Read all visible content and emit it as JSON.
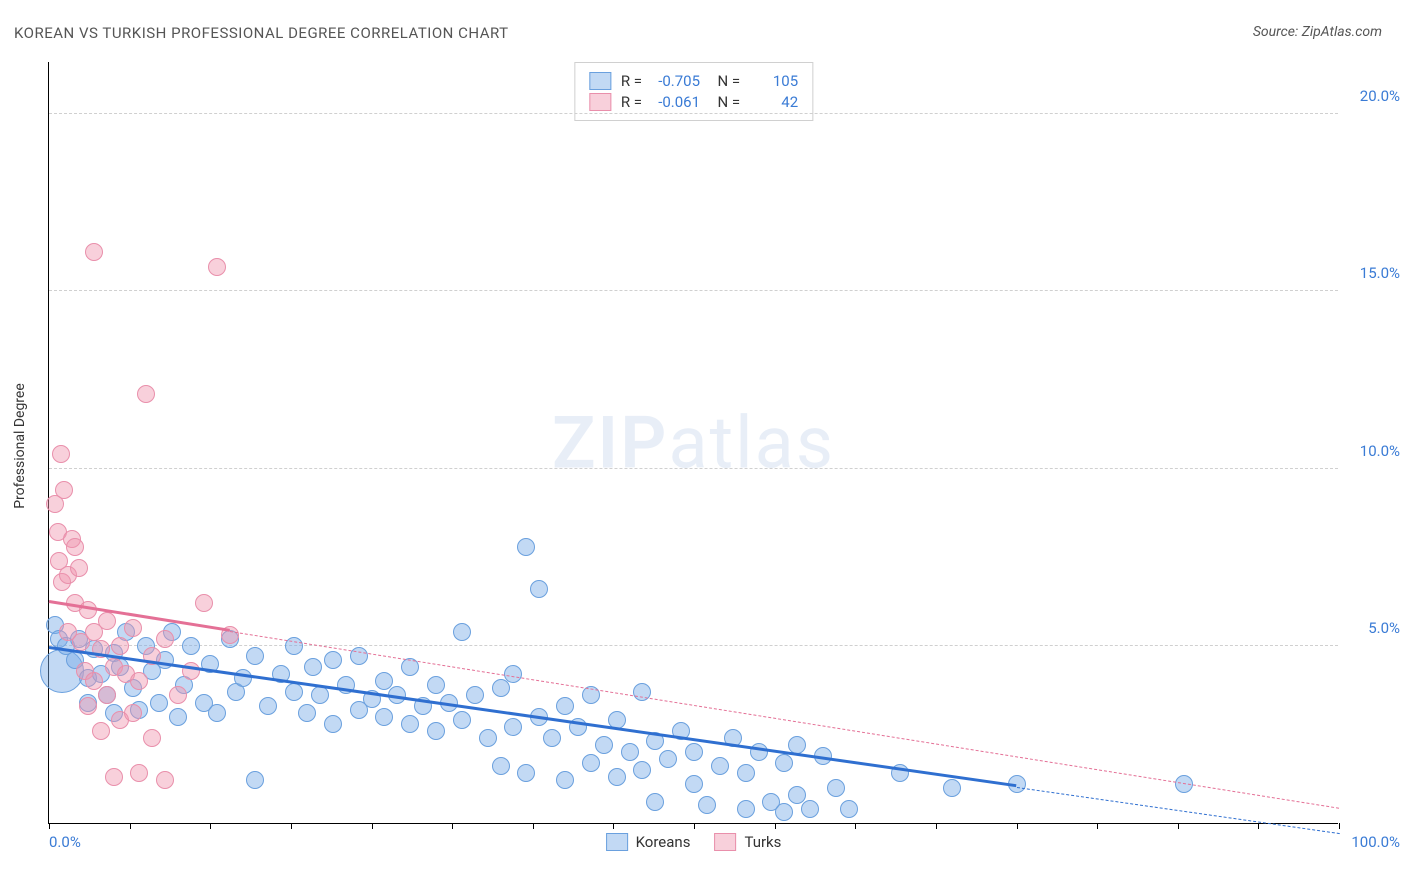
{
  "title": "KOREAN VS TURKISH PROFESSIONAL DEGREE CORRELATION CHART",
  "source": "Source: ZipAtlas.com",
  "ylabel": "Professional Degree",
  "watermark_a": "ZIP",
  "watermark_b": "atlas",
  "chart": {
    "type": "scatter",
    "xlim": [
      0,
      100
    ],
    "ylim": [
      0,
      21.5
    ],
    "y_ticks": [
      5.0,
      10.0,
      15.0,
      20.0
    ],
    "y_tick_labels": [
      "5.0%",
      "10.0%",
      "15.0%",
      "20.0%"
    ],
    "x_tick_positions": [
      0,
      6.25,
      12.5,
      18.75,
      25,
      31.25,
      37.5,
      43.75,
      50,
      56.25,
      62.5,
      68.75,
      75,
      81.25,
      87.5,
      93.75,
      100
    ],
    "x_left_label": "0.0%",
    "x_right_label": "100.0%",
    "background_color": "#ffffff",
    "grid_color": "#d0d0d0",
    "axis_color": "#000000",
    "tick_label_color": "#3a7bd5",
    "series": [
      {
        "name": "Koreans",
        "fill": "rgba(120,170,230,0.45)",
        "stroke": "#6aa0de",
        "R": "-0.705",
        "N": "105",
        "trend": {
          "x1": 0,
          "y1": 4.9,
          "x2": 100,
          "y2": -0.3,
          "solid_until_x": 75,
          "color": "#2f6fd0"
        },
        "points": [
          {
            "x": 0.5,
            "y": 5.6,
            "r": 9
          },
          {
            "x": 0.8,
            "y": 5.2,
            "r": 9
          },
          {
            "x": 1,
            "y": 4.3,
            "r": 22
          },
          {
            "x": 1.3,
            "y": 5.0,
            "r": 9
          },
          {
            "x": 2,
            "y": 4.6,
            "r": 9
          },
          {
            "x": 2.3,
            "y": 5.2,
            "r": 9
          },
          {
            "x": 3,
            "y": 4.1,
            "r": 9
          },
          {
            "x": 3,
            "y": 3.4,
            "r": 9
          },
          {
            "x": 3.5,
            "y": 4.9,
            "r": 9
          },
          {
            "x": 4,
            "y": 4.2,
            "r": 9
          },
          {
            "x": 4.5,
            "y": 3.6,
            "r": 9
          },
          {
            "x": 5,
            "y": 4.8,
            "r": 9
          },
          {
            "x": 5,
            "y": 3.1,
            "r": 9
          },
          {
            "x": 5.5,
            "y": 4.4,
            "r": 9
          },
          {
            "x": 6,
            "y": 5.4,
            "r": 9
          },
          {
            "x": 6.5,
            "y": 3.8,
            "r": 9
          },
          {
            "x": 7,
            "y": 3.2,
            "r": 9
          },
          {
            "x": 7.5,
            "y": 5.0,
            "r": 9
          },
          {
            "x": 8,
            "y": 4.3,
            "r": 9
          },
          {
            "x": 8.5,
            "y": 3.4,
            "r": 9
          },
          {
            "x": 9,
            "y": 4.6,
            "r": 9
          },
          {
            "x": 9.5,
            "y": 5.4,
            "r": 9
          },
          {
            "x": 10,
            "y": 3.0,
            "r": 9
          },
          {
            "x": 10.5,
            "y": 3.9,
            "r": 9
          },
          {
            "x": 11,
            "y": 5.0,
            "r": 9
          },
          {
            "x": 12,
            "y": 3.4,
            "r": 9
          },
          {
            "x": 12.5,
            "y": 4.5,
            "r": 9
          },
          {
            "x": 13,
            "y": 3.1,
            "r": 9
          },
          {
            "x": 14,
            "y": 5.2,
            "r": 9
          },
          {
            "x": 14.5,
            "y": 3.7,
            "r": 9
          },
          {
            "x": 15,
            "y": 4.1,
            "r": 9
          },
          {
            "x": 16,
            "y": 4.7,
            "r": 9
          },
          {
            "x": 16,
            "y": 1.2,
            "r": 9
          },
          {
            "x": 17,
            "y": 3.3,
            "r": 9
          },
          {
            "x": 18,
            "y": 4.2,
            "r": 9
          },
          {
            "x": 19,
            "y": 3.7,
            "r": 9
          },
          {
            "x": 19,
            "y": 5.0,
            "r": 9
          },
          {
            "x": 20,
            "y": 3.1,
            "r": 9
          },
          {
            "x": 20.5,
            "y": 4.4,
            "r": 9
          },
          {
            "x": 21,
            "y": 3.6,
            "r": 9
          },
          {
            "x": 22,
            "y": 2.8,
            "r": 9
          },
          {
            "x": 22,
            "y": 4.6,
            "r": 9
          },
          {
            "x": 23,
            "y": 3.9,
            "r": 9
          },
          {
            "x": 24,
            "y": 3.2,
            "r": 9
          },
          {
            "x": 24,
            "y": 4.7,
            "r": 9
          },
          {
            "x": 25,
            "y": 3.5,
            "r": 9
          },
          {
            "x": 26,
            "y": 4.0,
            "r": 9
          },
          {
            "x": 26,
            "y": 3.0,
            "r": 9
          },
          {
            "x": 27,
            "y": 3.6,
            "r": 9
          },
          {
            "x": 28,
            "y": 2.8,
            "r": 9
          },
          {
            "x": 28,
            "y": 4.4,
            "r": 9
          },
          {
            "x": 29,
            "y": 3.3,
            "r": 9
          },
          {
            "x": 30,
            "y": 3.9,
            "r": 9
          },
          {
            "x": 30,
            "y": 2.6,
            "r": 9
          },
          {
            "x": 31,
            "y": 3.4,
            "r": 9
          },
          {
            "x": 32,
            "y": 5.4,
            "r": 9
          },
          {
            "x": 32,
            "y": 2.9,
            "r": 9
          },
          {
            "x": 33,
            "y": 3.6,
            "r": 9
          },
          {
            "x": 34,
            "y": 2.4,
            "r": 9
          },
          {
            "x": 35,
            "y": 3.8,
            "r": 9
          },
          {
            "x": 35,
            "y": 1.6,
            "r": 9
          },
          {
            "x": 36,
            "y": 2.7,
            "r": 9
          },
          {
            "x": 36,
            "y": 4.2,
            "r": 9
          },
          {
            "x": 37,
            "y": 7.8,
            "r": 9
          },
          {
            "x": 37,
            "y": 1.4,
            "r": 9
          },
          {
            "x": 38,
            "y": 3.0,
            "r": 9
          },
          {
            "x": 38,
            "y": 6.6,
            "r": 9
          },
          {
            "x": 39,
            "y": 2.4,
            "r": 9
          },
          {
            "x": 40,
            "y": 3.3,
            "r": 9
          },
          {
            "x": 40,
            "y": 1.2,
            "r": 9
          },
          {
            "x": 41,
            "y": 2.7,
            "r": 9
          },
          {
            "x": 42,
            "y": 1.7,
            "r": 9
          },
          {
            "x": 42,
            "y": 3.6,
            "r": 9
          },
          {
            "x": 43,
            "y": 2.2,
            "r": 9
          },
          {
            "x": 44,
            "y": 1.3,
            "r": 9
          },
          {
            "x": 44,
            "y": 2.9,
            "r": 9
          },
          {
            "x": 45,
            "y": 2.0,
            "r": 9
          },
          {
            "x": 46,
            "y": 1.5,
            "r": 9
          },
          {
            "x": 46,
            "y": 3.7,
            "r": 9
          },
          {
            "x": 47,
            "y": 2.3,
            "r": 9
          },
          {
            "x": 47,
            "y": 0.6,
            "r": 9
          },
          {
            "x": 48,
            "y": 1.8,
            "r": 9
          },
          {
            "x": 49,
            "y": 2.6,
            "r": 9
          },
          {
            "x": 50,
            "y": 1.1,
            "r": 9
          },
          {
            "x": 50,
            "y": 2.0,
            "r": 9
          },
          {
            "x": 51,
            "y": 0.5,
            "r": 9
          },
          {
            "x": 52,
            "y": 1.6,
            "r": 9
          },
          {
            "x": 53,
            "y": 2.4,
            "r": 9
          },
          {
            "x": 54,
            "y": 0.4,
            "r": 9
          },
          {
            "x": 54,
            "y": 1.4,
            "r": 9
          },
          {
            "x": 55,
            "y": 2.0,
            "r": 9
          },
          {
            "x": 56,
            "y": 0.6,
            "r": 9
          },
          {
            "x": 57,
            "y": 1.7,
            "r": 9
          },
          {
            "x": 57,
            "y": 0.3,
            "r": 9
          },
          {
            "x": 58,
            "y": 2.2,
            "r": 9
          },
          {
            "x": 58,
            "y": 0.8,
            "r": 9
          },
          {
            "x": 59,
            "y": 0.4,
            "r": 9
          },
          {
            "x": 60,
            "y": 1.9,
            "r": 9
          },
          {
            "x": 61,
            "y": 1.0,
            "r": 9
          },
          {
            "x": 62,
            "y": 0.4,
            "r": 9
          },
          {
            "x": 66,
            "y": 1.4,
            "r": 9
          },
          {
            "x": 70,
            "y": 1.0,
            "r": 9
          },
          {
            "x": 75,
            "y": 1.1,
            "r": 9
          },
          {
            "x": 88,
            "y": 1.1,
            "r": 9
          }
        ]
      },
      {
        "name": "Turks",
        "fill": "rgba(240,150,175,0.45)",
        "stroke": "#e98fab",
        "R": "-0.061",
        "N": "42",
        "trend": {
          "x1": 0,
          "y1": 6.2,
          "x2": 100,
          "y2": 0.4,
          "solid_until_x": 14,
          "color": "#e47096"
        },
        "points": [
          {
            "x": 0.5,
            "y": 9.0,
            "r": 9
          },
          {
            "x": 0.7,
            "y": 8.2,
            "r": 9
          },
          {
            "x": 0.8,
            "y": 7.4,
            "r": 9
          },
          {
            "x": 0.9,
            "y": 10.4,
            "r": 9
          },
          {
            "x": 1,
            "y": 6.8,
            "r": 9
          },
          {
            "x": 1.2,
            "y": 9.4,
            "r": 9
          },
          {
            "x": 1.5,
            "y": 7.0,
            "r": 9
          },
          {
            "x": 1.5,
            "y": 5.4,
            "r": 9
          },
          {
            "x": 1.8,
            "y": 8.0,
            "r": 9
          },
          {
            "x": 2,
            "y": 7.8,
            "r": 9
          },
          {
            "x": 2,
            "y": 6.2,
            "r": 9
          },
          {
            "x": 2.3,
            "y": 7.2,
            "r": 9
          },
          {
            "x": 2.5,
            "y": 5.1,
            "r": 9
          },
          {
            "x": 2.8,
            "y": 4.3,
            "r": 9
          },
          {
            "x": 3,
            "y": 6.0,
            "r": 9
          },
          {
            "x": 3,
            "y": 3.3,
            "r": 9
          },
          {
            "x": 3.5,
            "y": 5.4,
            "r": 9
          },
          {
            "x": 3.5,
            "y": 4.0,
            "r": 9
          },
          {
            "x": 3.5,
            "y": 16.1,
            "r": 9
          },
          {
            "x": 4,
            "y": 4.9,
            "r": 9
          },
          {
            "x": 4,
            "y": 2.6,
            "r": 9
          },
          {
            "x": 4.5,
            "y": 5.7,
            "r": 9
          },
          {
            "x": 4.5,
            "y": 3.6,
            "r": 9
          },
          {
            "x": 5,
            "y": 4.4,
            "r": 9
          },
          {
            "x": 5,
            "y": 1.3,
            "r": 9
          },
          {
            "x": 5.5,
            "y": 5.0,
            "r": 9
          },
          {
            "x": 5.5,
            "y": 2.9,
            "r": 9
          },
          {
            "x": 6,
            "y": 4.2,
            "r": 9
          },
          {
            "x": 6.5,
            "y": 5.5,
            "r": 9
          },
          {
            "x": 6.5,
            "y": 3.1,
            "r": 9
          },
          {
            "x": 7,
            "y": 4.0,
            "r": 9
          },
          {
            "x": 7,
            "y": 1.4,
            "r": 9
          },
          {
            "x": 7.5,
            "y": 12.1,
            "r": 9
          },
          {
            "x": 8,
            "y": 4.7,
            "r": 9
          },
          {
            "x": 8,
            "y": 2.4,
            "r": 9
          },
          {
            "x": 9,
            "y": 5.2,
            "r": 9
          },
          {
            "x": 9,
            "y": 1.2,
            "r": 9
          },
          {
            "x": 10,
            "y": 3.6,
            "r": 9
          },
          {
            "x": 11,
            "y": 4.3,
            "r": 9
          },
          {
            "x": 12,
            "y": 6.2,
            "r": 9
          },
          {
            "x": 13,
            "y": 15.7,
            "r": 9
          },
          {
            "x": 14,
            "y": 5.3,
            "r": 9
          }
        ]
      }
    ]
  },
  "legend": {
    "bottom": [
      "Koreans",
      "Turks"
    ]
  }
}
